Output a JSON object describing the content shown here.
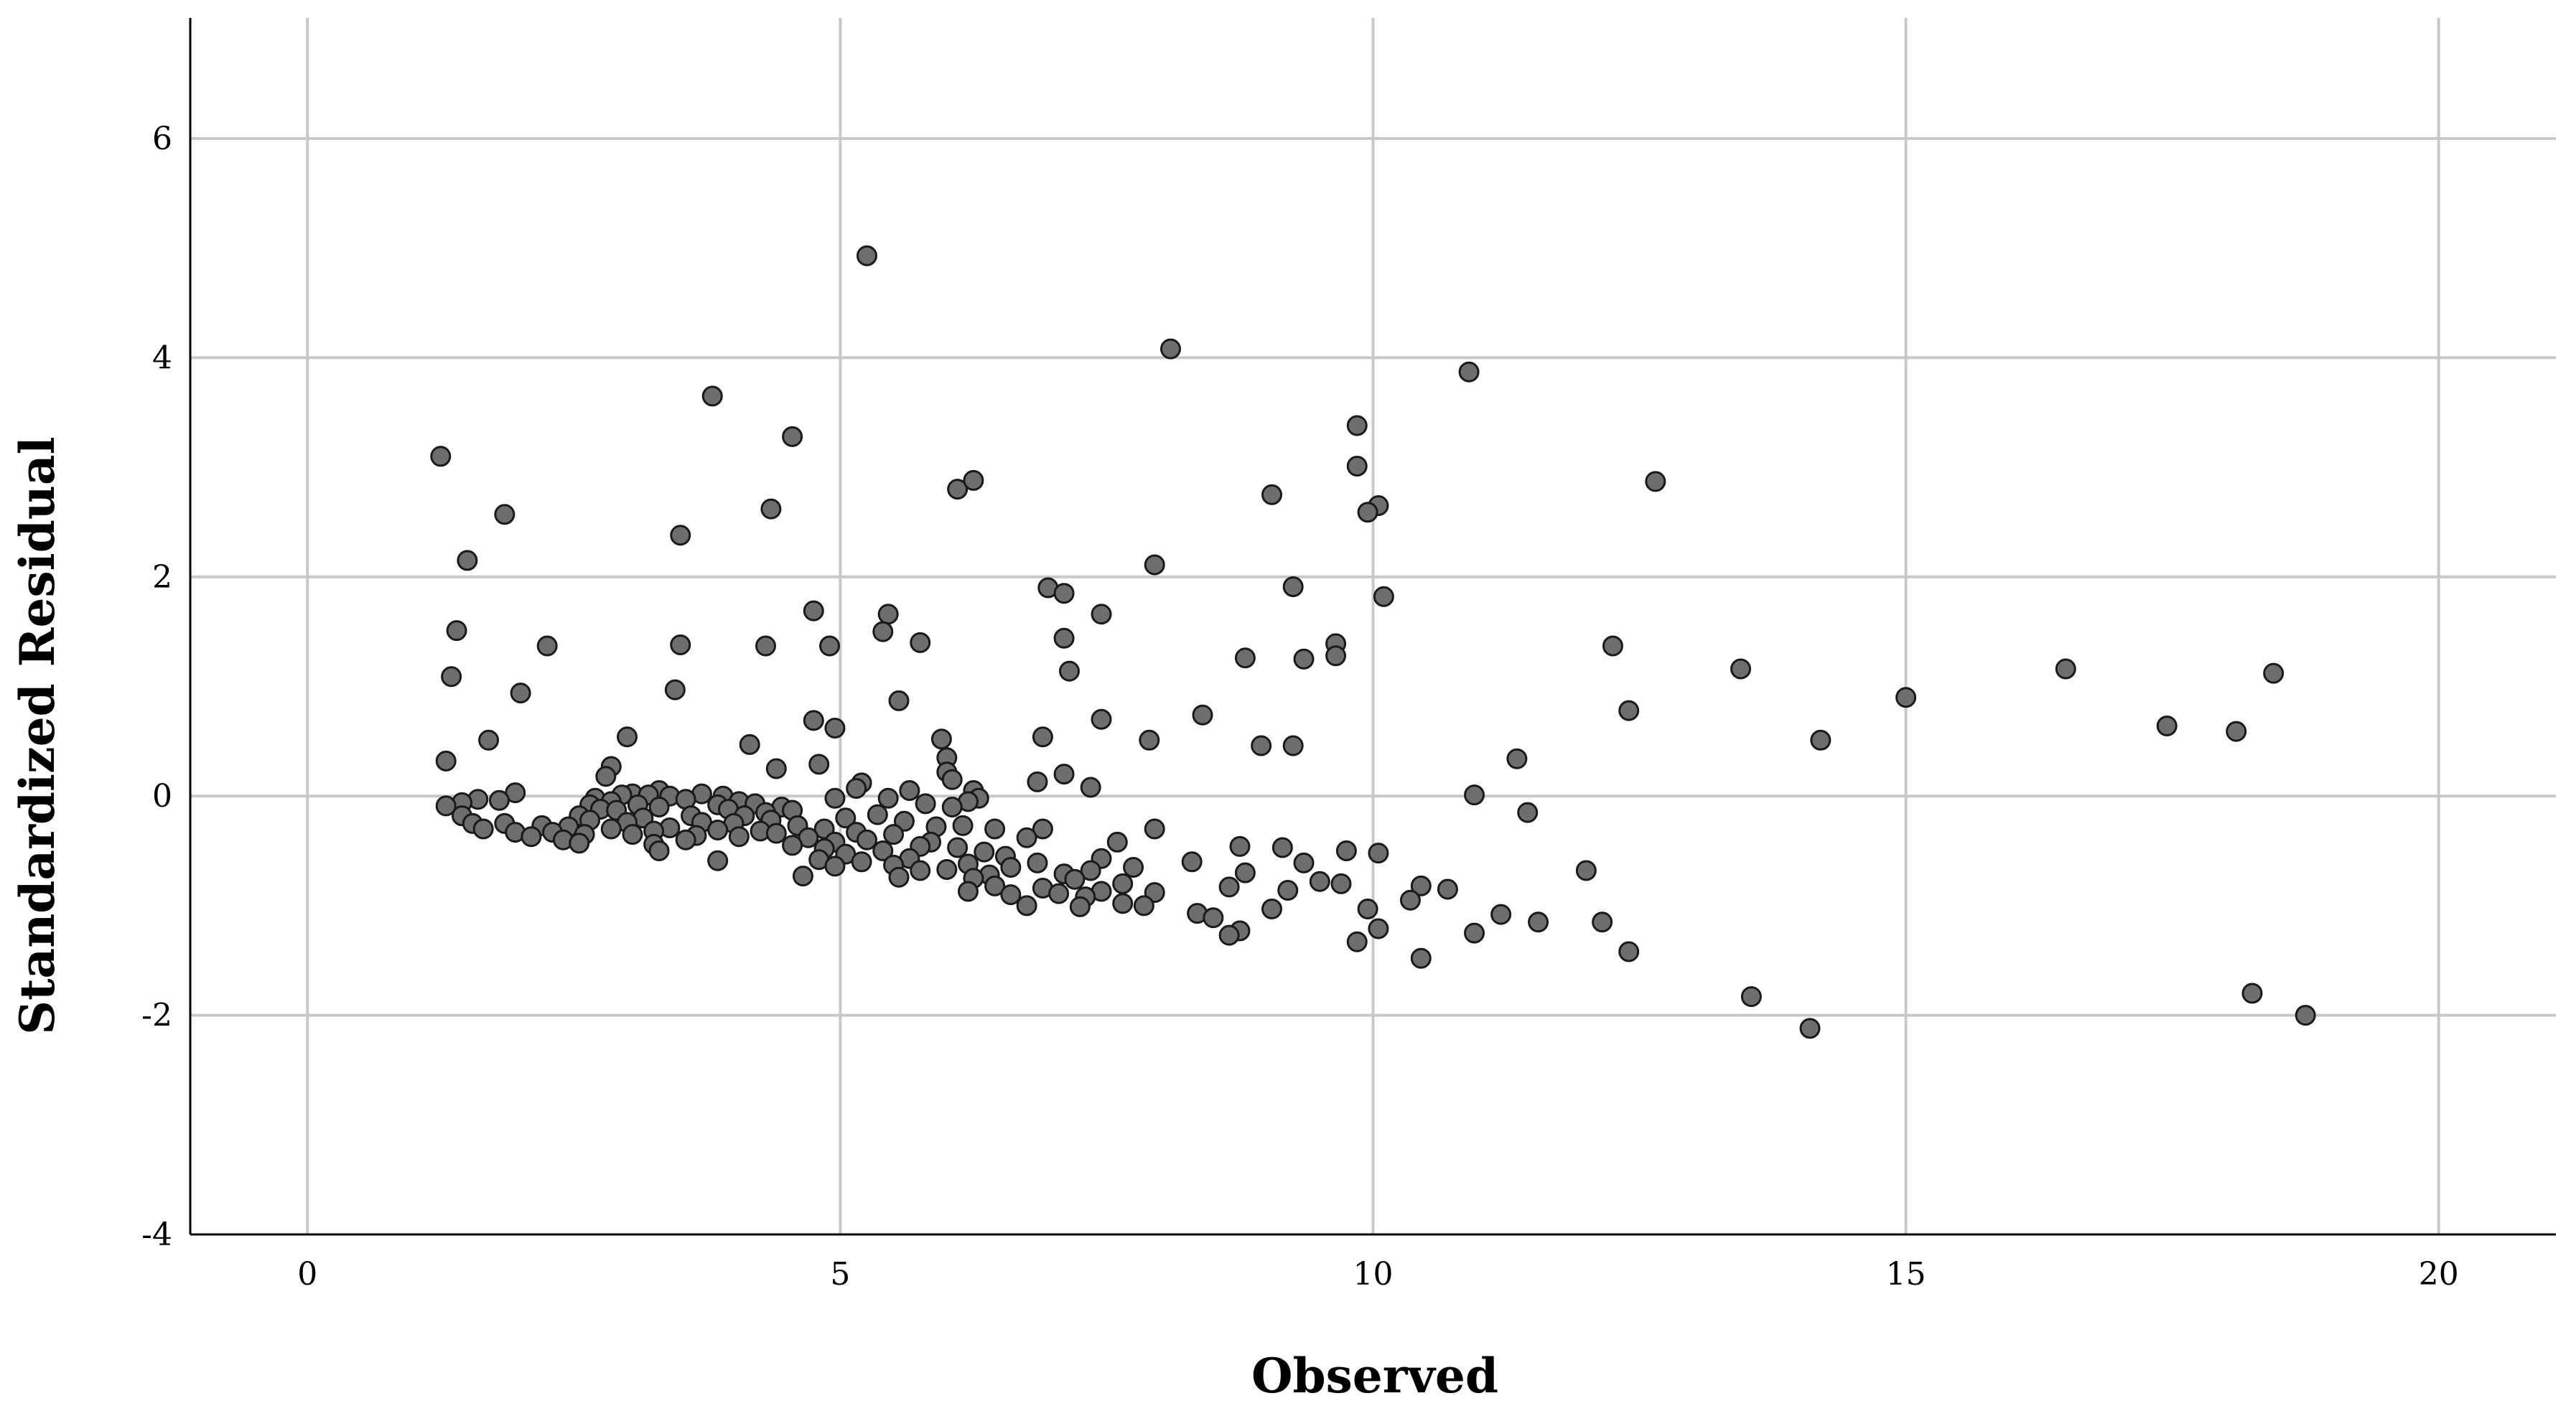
{
  "chart_data": {
    "type": "scatter",
    "title": "",
    "xlabel": "Observed",
    "ylabel": "Standardized Residual",
    "xlim": [
      -1.1,
      21.1
    ],
    "ylim": [
      -4,
      7.1
    ],
    "xticks": [
      "0",
      "5",
      "10",
      "15",
      "20"
    ],
    "yticks": [
      "-4",
      "-2",
      "0",
      "2",
      "4",
      "6"
    ],
    "grid": true,
    "legend": "none",
    "colors": {
      "marker_fill": "#6e6e6e",
      "marker_edge": "#1a1a1a",
      "grid": "#c8c8c8"
    },
    "series": [
      {
        "points": [
          [
            5.25,
            4.93
          ],
          [
            8.1,
            4.08
          ],
          [
            10.9,
            3.87
          ],
          [
            3.8,
            3.65
          ],
          [
            4.55,
            3.28
          ],
          [
            1.25,
            3.1
          ],
          [
            9.85,
            3.38
          ],
          [
            9.85,
            3.01
          ],
          [
            6.1,
            2.8
          ],
          [
            6.25,
            2.88
          ],
          [
            12.65,
            2.87
          ],
          [
            9.05,
            2.75
          ],
          [
            10.05,
            2.65
          ],
          [
            9.95,
            2.59
          ],
          [
            1.85,
            2.57
          ],
          [
            4.35,
            2.62
          ],
          [
            3.5,
            2.38
          ],
          [
            1.5,
            2.15
          ],
          [
            7.95,
            2.11
          ],
          [
            6.95,
            1.9
          ],
          [
            7.1,
            1.85
          ],
          [
            9.25,
            1.91
          ],
          [
            10.1,
            1.82
          ],
          [
            4.75,
            1.69
          ],
          [
            5.45,
            1.66
          ],
          [
            7.45,
            1.66
          ],
          [
            1.4,
            1.51
          ],
          [
            5.4,
            1.5
          ],
          [
            7.1,
            1.44
          ],
          [
            5.75,
            1.4
          ],
          [
            9.65,
            1.39
          ],
          [
            3.5,
            1.38
          ],
          [
            2.25,
            1.37
          ],
          [
            4.3,
            1.37
          ],
          [
            4.9,
            1.37
          ],
          [
            12.25,
            1.37
          ],
          [
            9.65,
            1.28
          ],
          [
            8.8,
            1.26
          ],
          [
            9.35,
            1.25
          ],
          [
            13.45,
            1.16
          ],
          [
            16.5,
            1.16
          ],
          [
            7.15,
            1.14
          ],
          [
            18.45,
            1.12
          ],
          [
            1.35,
            1.09
          ],
          [
            3.45,
            0.97
          ],
          [
            2.0,
            0.94
          ],
          [
            15.0,
            0.9
          ],
          [
            5.55,
            0.87
          ],
          [
            12.4,
            0.78
          ],
          [
            8.4,
            0.74
          ],
          [
            4.75,
            0.69
          ],
          [
            7.45,
            0.7
          ],
          [
            17.45,
            0.64
          ],
          [
            4.95,
            0.62
          ],
          [
            18.1,
            0.59
          ],
          [
            3.0,
            0.54
          ],
          [
            6.9,
            0.54
          ],
          [
            5.95,
            0.52
          ],
          [
            1.7,
            0.51
          ],
          [
            7.9,
            0.51
          ],
          [
            14.2,
            0.51
          ],
          [
            4.15,
            0.47
          ],
          [
            8.95,
            0.46
          ],
          [
            9.25,
            0.46
          ],
          [
            6.0,
            0.35
          ],
          [
            11.35,
            0.34
          ],
          [
            1.3,
            0.32
          ],
          [
            4.8,
            0.29
          ],
          [
            2.85,
            0.27
          ],
          [
            4.4,
            0.25
          ],
          [
            6.0,
            0.22
          ],
          [
            7.1,
            0.2
          ],
          [
            2.8,
            0.18
          ],
          [
            6.05,
            0.15
          ],
          [
            6.85,
            0.13
          ],
          [
            5.2,
            0.12
          ],
          [
            7.35,
            0.08
          ],
          [
            5.15,
            0.07
          ],
          [
            6.25,
            0.05
          ],
          [
            5.65,
            0.05
          ],
          [
            3.3,
            0.05
          ],
          [
            1.95,
            0.03
          ],
          [
            3.05,
            0.02
          ],
          [
            3.7,
            0.02
          ],
          [
            10.95,
            0.01
          ],
          [
            3.2,
            0.01
          ],
          [
            2.95,
            0.01
          ],
          [
            3.9,
            0.0
          ],
          [
            3.4,
            0.0
          ],
          [
            5.45,
            -0.02
          ],
          [
            2.7,
            -0.02
          ],
          [
            4.95,
            -0.02
          ],
          [
            1.6,
            -0.03
          ],
          [
            6.3,
            -0.02
          ],
          [
            3.55,
            -0.03
          ],
          [
            1.8,
            -0.04
          ],
          [
            6.2,
            -0.05
          ],
          [
            4.05,
            -0.05
          ],
          [
            2.85,
            -0.05
          ],
          [
            1.45,
            -0.06
          ],
          [
            4.2,
            -0.07
          ],
          [
            5.8,
            -0.07
          ],
          [
            2.65,
            -0.08
          ],
          [
            3.1,
            -0.08
          ],
          [
            3.85,
            -0.08
          ],
          [
            1.3,
            -0.09
          ],
          [
            4.45,
            -0.1
          ],
          [
            6.05,
            -0.1
          ],
          [
            3.3,
            -0.1
          ],
          [
            2.75,
            -0.12
          ],
          [
            3.95,
            -0.12
          ],
          [
            4.55,
            -0.13
          ],
          [
            2.9,
            -0.13
          ],
          [
            11.45,
            -0.15
          ],
          [
            4.3,
            -0.15
          ],
          [
            5.35,
            -0.17
          ],
          [
            1.45,
            -0.18
          ],
          [
            2.55,
            -0.18
          ],
          [
            3.6,
            -0.18
          ],
          [
            4.1,
            -0.18
          ],
          [
            5.05,
            -0.2
          ],
          [
            3.15,
            -0.2
          ],
          [
            2.65,
            -0.22
          ],
          [
            4.35,
            -0.22
          ],
          [
            5.6,
            -0.23
          ],
          [
            3.0,
            -0.24
          ],
          [
            3.7,
            -0.24
          ],
          [
            1.85,
            -0.25
          ],
          [
            1.55,
            -0.25
          ],
          [
            4.0,
            -0.25
          ],
          [
            4.6,
            -0.27
          ],
          [
            2.2,
            -0.27
          ],
          [
            6.15,
            -0.27
          ],
          [
            5.9,
            -0.28
          ],
          [
            2.45,
            -0.28
          ],
          [
            3.4,
            -0.29
          ],
          [
            1.65,
            -0.3
          ],
          [
            2.85,
            -0.3
          ],
          [
            7.95,
            -0.3
          ],
          [
            4.85,
            -0.3
          ],
          [
            6.45,
            -0.3
          ],
          [
            6.9,
            -0.3
          ],
          [
            3.85,
            -0.31
          ],
          [
            4.25,
            -0.32
          ],
          [
            3.25,
            -0.32
          ],
          [
            1.95,
            -0.33
          ],
          [
            2.3,
            -0.33
          ],
          [
            5.15,
            -0.33
          ],
          [
            4.4,
            -0.34
          ],
          [
            2.6,
            -0.35
          ],
          [
            5.5,
            -0.35
          ],
          [
            3.05,
            -0.35
          ],
          [
            3.65,
            -0.36
          ],
          [
            4.05,
            -0.37
          ],
          [
            2.1,
            -0.37
          ],
          [
            6.75,
            -0.38
          ],
          [
            4.7,
            -0.38
          ],
          [
            5.25,
            -0.4
          ],
          [
            2.4,
            -0.4
          ],
          [
            3.55,
            -0.4
          ],
          [
            4.95,
            -0.42
          ],
          [
            7.6,
            -0.42
          ],
          [
            5.85,
            -0.42
          ],
          [
            2.55,
            -0.43
          ],
          [
            3.25,
            -0.44
          ],
          [
            4.55,
            -0.45
          ],
          [
            5.75,
            -0.46
          ],
          [
            8.75,
            -0.46
          ],
          [
            6.1,
            -0.47
          ],
          [
            9.15,
            -0.47
          ],
          [
            4.85,
            -0.48
          ],
          [
            5.4,
            -0.5
          ],
          [
            9.75,
            -0.5
          ],
          [
            3.3,
            -0.5
          ],
          [
            6.35,
            -0.51
          ],
          [
            10.05,
            -0.52
          ],
          [
            5.05,
            -0.53
          ],
          [
            6.55,
            -0.55
          ],
          [
            5.65,
            -0.57
          ],
          [
            7.45,
            -0.57
          ],
          [
            4.8,
            -0.58
          ],
          [
            3.85,
            -0.59
          ],
          [
            8.3,
            -0.6
          ],
          [
            5.2,
            -0.6
          ],
          [
            6.85,
            -0.61
          ],
          [
            9.35,
            -0.61
          ],
          [
            6.2,
            -0.62
          ],
          [
            5.5,
            -0.63
          ],
          [
            4.95,
            -0.64
          ],
          [
            6.6,
            -0.65
          ],
          [
            7.75,
            -0.65
          ],
          [
            6.0,
            -0.67
          ],
          [
            12.0,
            -0.68
          ],
          [
            7.35,
            -0.68
          ],
          [
            5.75,
            -0.68
          ],
          [
            8.8,
            -0.7
          ],
          [
            7.1,
            -0.71
          ],
          [
            6.4,
            -0.72
          ],
          [
            4.65,
            -0.73
          ],
          [
            5.55,
            -0.74
          ],
          [
            6.25,
            -0.75
          ],
          [
            7.2,
            -0.76
          ],
          [
            9.5,
            -0.78
          ],
          [
            7.65,
            -0.8
          ],
          [
            9.7,
            -0.8
          ],
          [
            6.45,
            -0.82
          ],
          [
            10.45,
            -0.82
          ],
          [
            8.65,
            -0.83
          ],
          [
            6.9,
            -0.84
          ],
          [
            10.7,
            -0.85
          ],
          [
            9.2,
            -0.86
          ],
          [
            7.45,
            -0.87
          ],
          [
            6.2,
            -0.87
          ],
          [
            7.95,
            -0.88
          ],
          [
            7.05,
            -0.89
          ],
          [
            6.6,
            -0.9
          ],
          [
            7.3,
            -0.92
          ],
          [
            10.35,
            -0.95
          ],
          [
            7.65,
            -0.98
          ],
          [
            6.75,
            -1.0
          ],
          [
            7.85,
            -1.0
          ],
          [
            7.25,
            -1.01
          ],
          [
            9.05,
            -1.03
          ],
          [
            9.95,
            -1.03
          ],
          [
            8.35,
            -1.07
          ],
          [
            11.2,
            -1.08
          ],
          [
            8.5,
            -1.11
          ],
          [
            11.55,
            -1.15
          ],
          [
            12.15,
            -1.15
          ],
          [
            10.05,
            -1.21
          ],
          [
            8.75,
            -1.23
          ],
          [
            10.95,
            -1.25
          ],
          [
            8.65,
            -1.27
          ],
          [
            9.85,
            -1.33
          ],
          [
            12.4,
            -1.42
          ],
          [
            10.45,
            -1.48
          ],
          [
            18.25,
            -1.8
          ],
          [
            13.55,
            -1.83
          ],
          [
            18.75,
            -2.0
          ],
          [
            14.1,
            -2.12
          ]
        ]
      }
    ]
  }
}
